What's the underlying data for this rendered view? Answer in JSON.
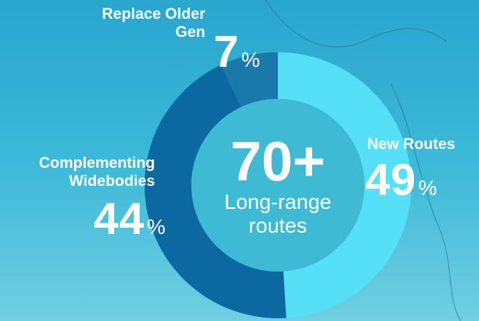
{
  "chart_data": {
    "type": "donut",
    "categories": [
      "New Routes",
      "Complementing Widebodies",
      "Replace Older Gen"
    ],
    "values": [
      49,
      44,
      7
    ],
    "colors": [
      "#56e0f7",
      "#0b68a0",
      "#1a79ab"
    ],
    "unit": "%",
    "center_value": "70+",
    "center_label": "Long-range routes"
  }
}
